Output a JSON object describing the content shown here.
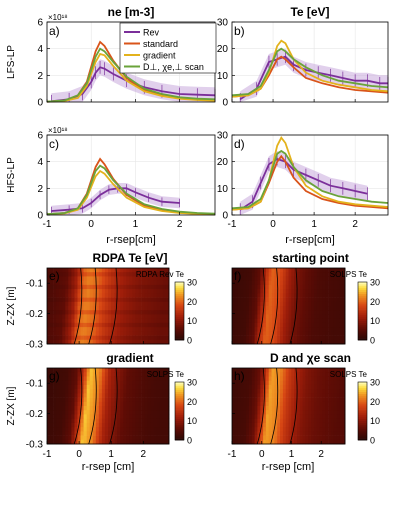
{
  "figure": {
    "colors": {
      "rev": "#7b2f9a",
      "standard": "#d9541a",
      "gradient": "#e3b21c",
      "dscan": "#6aa33a",
      "band": "#c9a9dc"
    },
    "legend": [
      "Rev",
      "standard",
      "gradient",
      "D⊥, χe,⊥ scan"
    ],
    "xlabel_top": "r-rsep[cm]",
    "xlabel_bottom": "r-rsep [cm]",
    "ylabel_ne_lfs": "LFS-LP",
    "ylabel_ne_hfs": "HFS-LP",
    "ylabel_map": "Z-ZX [m]",
    "exponent": "×10¹⁸"
  },
  "chart_data": [
    {
      "id": "a",
      "type": "line",
      "panel_label": "a)",
      "title": "ne [m-3]",
      "xlim": [
        -1,
        2.8
      ],
      "ylim": [
        0,
        6
      ],
      "y_ticks": [
        "0",
        "2",
        "4",
        "6"
      ],
      "x_ticks": [],
      "series": [
        {
          "name": "Rev",
          "key": "rev",
          "x": [
            -0.9,
            -0.5,
            -0.2,
            0,
            0.1,
            0.2,
            0.3,
            0.5,
            0.8,
            1.2,
            1.6,
            2.0,
            2.4,
            2.8
          ],
          "y": [
            0.05,
            0.2,
            0.6,
            1.5,
            2.2,
            2.6,
            2.5,
            2.1,
            1.6,
            1.1,
            0.8,
            0.6,
            0.55,
            0.5
          ],
          "band": 0.6
        },
        {
          "name": "standard",
          "key": "standard",
          "x": [
            -1,
            -0.6,
            -0.3,
            -0.1,
            0.1,
            0.2,
            0.3,
            0.5,
            0.8,
            1.2,
            1.6,
            2.0,
            2.4,
            2.8
          ],
          "y": [
            0.02,
            0.1,
            0.5,
            1.5,
            3.8,
            4.5,
            4.2,
            3.1,
            1.8,
            0.9,
            0.5,
            0.3,
            0.2,
            0.15
          ]
        },
        {
          "name": "gradient",
          "key": "gradient",
          "x": [
            -1,
            -0.6,
            -0.3,
            -0.1,
            0.1,
            0.2,
            0.3,
            0.5,
            0.8,
            1.2,
            1.6,
            2.0,
            2.4,
            2.8
          ],
          "y": [
            0.02,
            0.08,
            0.3,
            1.2,
            3.0,
            3.6,
            3.5,
            2.7,
            1.6,
            0.8,
            0.45,
            0.25,
            0.15,
            0.1
          ]
        },
        {
          "name": "D⊥, χe,⊥ scan",
          "key": "dscan",
          "x": [
            -1,
            -0.6,
            -0.3,
            -0.1,
            0.1,
            0.2,
            0.3,
            0.5,
            0.8,
            1.2,
            1.6,
            2.0,
            2.4,
            2.8
          ],
          "y": [
            0.03,
            0.12,
            0.5,
            1.4,
            3.4,
            4.0,
            3.8,
            3.0,
            1.9,
            1.0,
            0.6,
            0.35,
            0.25,
            0.2
          ]
        }
      ]
    },
    {
      "id": "b",
      "type": "line",
      "panel_label": "b)",
      "title": "Te [eV]",
      "xlim": [
        -1,
        2.8
      ],
      "ylim": [
        0,
        30
      ],
      "y_ticks": [
        "0",
        "10",
        "20",
        "30"
      ],
      "x_ticks": [],
      "series": [
        {
          "name": "Rev",
          "key": "rev",
          "x": [
            -0.8,
            -0.4,
            -0.1,
            0.1,
            0.3,
            0.5,
            0.8,
            1.1,
            1.4,
            1.7,
            2.0,
            2.3,
            2.6,
            2.8
          ],
          "y": [
            1,
            5,
            15,
            16,
            17,
            14,
            12,
            11,
            10,
            9,
            8,
            8,
            7,
            7
          ],
          "band": 3
        },
        {
          "name": "standard",
          "key": "standard",
          "x": [
            -1,
            -0.6,
            -0.3,
            -0.1,
            0.1,
            0.2,
            0.3,
            0.5,
            0.8,
            1.2,
            1.6,
            2.0,
            2.4,
            2.8
          ],
          "y": [
            2,
            2.5,
            5,
            10,
            16,
            17,
            16,
            13,
            9,
            7,
            5.5,
            4.5,
            4,
            3.5
          ]
        },
        {
          "name": "gradient",
          "key": "gradient",
          "x": [
            -1,
            -0.6,
            -0.3,
            -0.1,
            0.1,
            0.2,
            0.3,
            0.5,
            0.8,
            1.2,
            1.6,
            2.0,
            2.4,
            2.8
          ],
          "y": [
            2,
            2.5,
            5,
            11,
            21,
            23,
            22,
            16,
            11,
            8,
            6.5,
            5.5,
            4.5,
            4
          ]
        },
        {
          "name": "D⊥, χe,⊥ scan",
          "key": "dscan",
          "x": [
            -1,
            -0.6,
            -0.3,
            -0.1,
            0.1,
            0.2,
            0.3,
            0.5,
            0.8,
            1.2,
            1.6,
            2.0,
            2.4,
            2.8
          ],
          "y": [
            2.5,
            3,
            6,
            12,
            19,
            20,
            19,
            16,
            13,
            10,
            8,
            7,
            6,
            5.5
          ]
        }
      ]
    },
    {
      "id": "c",
      "type": "line",
      "panel_label": "c)",
      "title": "",
      "xlim": [
        -1,
        2.8
      ],
      "ylim": [
        0,
        6
      ],
      "y_ticks": [
        "0",
        "2",
        "4",
        "6"
      ],
      "x_ticks": [
        "-1",
        "0",
        "1",
        "2"
      ],
      "series": [
        {
          "name": "Rev",
          "key": "rev",
          "x": [
            -0.9,
            -0.5,
            -0.2,
            0,
            0.2,
            0.4,
            0.6,
            0.8,
            1.0,
            1.3,
            1.6,
            2.0
          ],
          "y": [
            0.3,
            0.4,
            0.5,
            0.9,
            1.5,
            1.9,
            2.0,
            2.0,
            1.7,
            1.3,
            1.0,
            0.9
          ],
          "band": 0.4
        },
        {
          "name": "standard",
          "key": "standard",
          "x": [
            -1,
            -0.6,
            -0.3,
            -0.1,
            0.1,
            0.2,
            0.3,
            0.5,
            0.8,
            1.2,
            1.6,
            2.0,
            2.4,
            2.8
          ],
          "y": [
            0.05,
            0.15,
            0.5,
            1.6,
            3.6,
            4.2,
            3.8,
            2.7,
            1.5,
            0.7,
            0.35,
            0.2,
            0.1,
            0.05
          ]
        },
        {
          "name": "gradient",
          "key": "gradient",
          "x": [
            -1,
            -0.6,
            -0.3,
            -0.1,
            0.1,
            0.2,
            0.3,
            0.5,
            0.8,
            1.2,
            1.6,
            2.0,
            2.4,
            2.8
          ],
          "y": [
            0.05,
            0.12,
            0.4,
            1.3,
            2.9,
            3.3,
            3.1,
            2.3,
            1.3,
            0.6,
            0.3,
            0.15,
            0.08,
            0.05
          ]
        },
        {
          "name": "D⊥, χe,⊥ scan",
          "key": "dscan",
          "x": [
            -1,
            -0.6,
            -0.3,
            -0.1,
            0.1,
            0.2,
            0.3,
            0.5,
            0.8,
            1.2,
            1.6,
            2.0,
            2.4,
            2.8
          ],
          "y": [
            0.06,
            0.15,
            0.5,
            1.5,
            3.3,
            3.7,
            3.5,
            2.6,
            1.6,
            0.8,
            0.45,
            0.25,
            0.15,
            0.1
          ]
        }
      ]
    },
    {
      "id": "d",
      "type": "line",
      "panel_label": "d)",
      "title": "",
      "xlim": [
        -1,
        2.8
      ],
      "ylim": [
        0,
        30
      ],
      "y_ticks": [
        "0",
        "10",
        "20",
        "30"
      ],
      "x_ticks": [
        "-1",
        "0",
        "1",
        "2"
      ],
      "series": [
        {
          "name": "Rev",
          "key": "rev",
          "x": [
            -0.8,
            -0.5,
            -0.3,
            -0.1,
            0.1,
            0.3,
            0.5,
            0.8,
            1.1,
            1.4,
            1.7,
            2.0,
            2.3
          ],
          "y": [
            2,
            5,
            12,
            19,
            21,
            20,
            17,
            15,
            13,
            11,
            10,
            9,
            8
          ],
          "band": 3
        },
        {
          "name": "standard",
          "key": "standard",
          "x": [
            -1,
            -0.6,
            -0.3,
            -0.1,
            0.1,
            0.2,
            0.3,
            0.5,
            0.8,
            1.2,
            1.6,
            2.0,
            2.4,
            2.8
          ],
          "y": [
            2,
            2.5,
            5,
            12,
            20,
            22,
            20,
            14,
            9,
            6,
            4.5,
            3.5,
            3,
            2.5
          ]
        },
        {
          "name": "gradient",
          "key": "gradient",
          "x": [
            -1,
            -0.6,
            -0.3,
            -0.1,
            0.1,
            0.2,
            0.3,
            0.5,
            0.8,
            1.2,
            1.6,
            2.0,
            2.4,
            2.8
          ],
          "y": [
            2,
            2.5,
            5,
            13,
            26,
            29,
            27,
            18,
            11,
            7,
            5,
            4,
            3.5,
            3
          ]
        },
        {
          "name": "D⊥, χe,⊥ scan",
          "key": "dscan",
          "x": [
            -1,
            -0.6,
            -0.3,
            -0.1,
            0.1,
            0.2,
            0.3,
            0.5,
            0.8,
            1.2,
            1.6,
            2.0,
            2.4,
            2.8
          ],
          "y": [
            2.5,
            3,
            6,
            13,
            23,
            24,
            23,
            18,
            13,
            9,
            7,
            6,
            5,
            4.5
          ]
        }
      ]
    },
    {
      "id": "e",
      "type": "heatmap",
      "panel_label": "e)",
      "title": "RDPA Te [eV]",
      "map_label": "RDPA Rev Te",
      "xlim": [
        -1,
        2.8
      ],
      "ylim": [
        -0.3,
        -0.05
      ],
      "colorbar": {
        "min": 0,
        "max": 30,
        "ticks": [
          "0",
          "10",
          "20",
          "30"
        ]
      },
      "x_ticks": [],
      "y_ticks": [
        "-0.1",
        "-0.2",
        "-0.3"
      ],
      "profile_x": [
        -1.0,
        -0.5,
        -0.2,
        0.0,
        0.2,
        0.5,
        0.8,
        1.1,
        1.4,
        1.8,
        2.2,
        2.6
      ],
      "profile_te": [
        4,
        6,
        12,
        20,
        22,
        20,
        16,
        13,
        11,
        9,
        8,
        7
      ]
    },
    {
      "id": "f",
      "type": "heatmap",
      "panel_label": "f)",
      "title": "starting point",
      "map_label": "SOLPS Te",
      "xlim": [
        -1,
        2.8
      ],
      "ylim": [
        -0.3,
        -0.05
      ],
      "colorbar": {
        "min": 0,
        "max": 30,
        "ticks": [
          "0",
          "10",
          "20",
          "30"
        ]
      },
      "x_ticks": [],
      "y_ticks": [],
      "profile_x": [
        -1.0,
        -0.5,
        -0.2,
        0.0,
        0.2,
        0.5,
        0.8,
        1.1,
        1.4,
        1.8,
        2.2,
        2.6
      ],
      "profile_te": [
        2,
        3,
        6,
        14,
        20,
        18,
        12,
        8,
        6,
        4,
        3.5,
        3
      ]
    },
    {
      "id": "g",
      "type": "heatmap",
      "panel_label": "g)",
      "title": "gradient",
      "map_label": "SOLPS Te",
      "xlim": [
        -1,
        2.8
      ],
      "ylim": [
        -0.3,
        -0.05
      ],
      "colorbar": {
        "min": 0,
        "max": 30,
        "ticks": [
          "0",
          "10",
          "20",
          "30"
        ]
      },
      "x_ticks": [
        "-1",
        "0",
        "1",
        "2"
      ],
      "y_ticks": [
        "-0.1",
        "-0.2",
        "-0.3"
      ],
      "profile_x": [
        -1.0,
        -0.5,
        -0.2,
        0.0,
        0.2,
        0.5,
        0.8,
        1.1,
        1.4,
        1.8,
        2.2,
        2.6
      ],
      "profile_te": [
        2,
        3,
        6,
        15,
        26,
        22,
        13,
        9,
        6,
        4.5,
        3.5,
        3
      ]
    },
    {
      "id": "h",
      "type": "heatmap",
      "panel_label": "h)",
      "title": "D and χe scan",
      "map_label": "SOLPS Te",
      "xlim": [
        -1,
        2.8
      ],
      "ylim": [
        -0.3,
        -0.05
      ],
      "colorbar": {
        "min": 0,
        "max": 30,
        "ticks": [
          "0",
          "10",
          "20",
          "30"
        ]
      },
      "x_ticks": [
        "-1",
        "0",
        "1",
        "2"
      ],
      "y_ticks": [],
      "profile_x": [
        -1.0,
        -0.5,
        -0.2,
        0.0,
        0.2,
        0.5,
        0.8,
        1.1,
        1.4,
        1.8,
        2.2,
        2.6
      ],
      "profile_te": [
        2.5,
        3.5,
        7,
        15,
        24,
        22,
        16,
        12,
        9,
        7,
        6,
        5
      ]
    }
  ]
}
